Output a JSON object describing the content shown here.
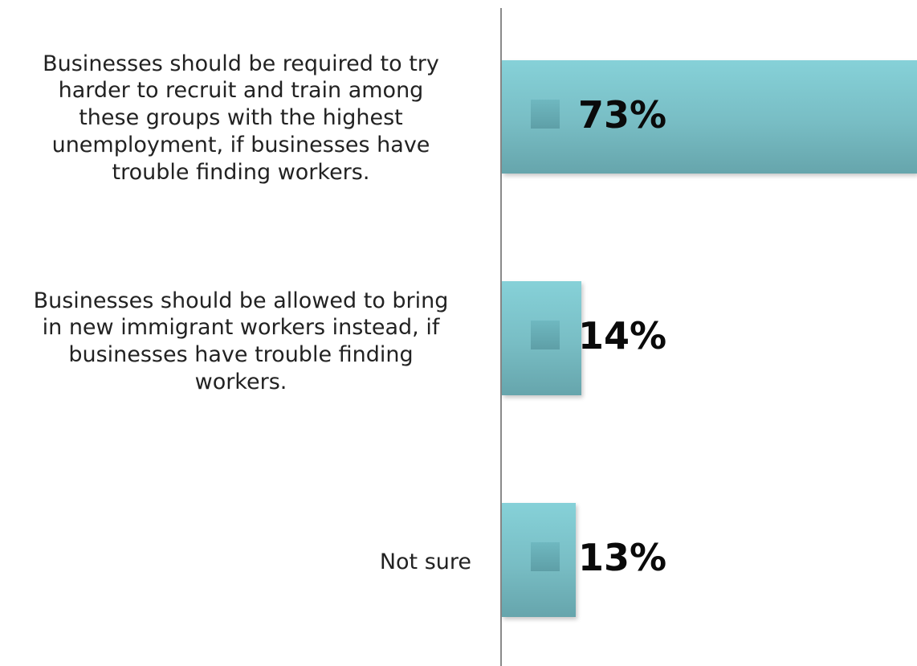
{
  "chart_data": {
    "type": "bar",
    "orientation": "horizontal",
    "categories": [
      "Businesses should be required to try harder to recruit and train among these groups with the highest unemployment, if businesses have trouble finding workers.",
      "Businesses should be allowed to bring in new immigrant workers instead, if businesses have trouble finding workers.",
      "Not sure"
    ],
    "values": [
      73,
      14,
      13
    ],
    "value_labels": [
      "73%",
      "14%",
      "13%"
    ],
    "xlim": [
      0,
      73
    ],
    "unit": "%",
    "grid": false,
    "legend": "none",
    "bar_color": "#7cc6cd"
  }
}
